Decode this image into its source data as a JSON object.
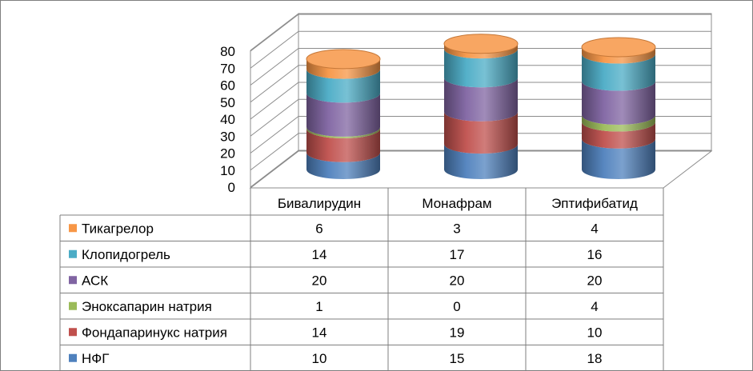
{
  "chart_data": {
    "type": "bar",
    "style": "stacked 3d cylinder with data table",
    "categories": [
      "Бивалирудин",
      "Монафрам",
      "Эптифибатид"
    ],
    "series": [
      {
        "name": "НФГ",
        "values": [
          10,
          15,
          18
        ],
        "color": "#4F81BD"
      },
      {
        "name": "Фондапаринукс натрия",
        "values": [
          14,
          19,
          10
        ],
        "color": "#C0504D"
      },
      {
        "name": "Эноксапарин натрия",
        "values": [
          1,
          0,
          4
        ],
        "color": "#9BBB59"
      },
      {
        "name": "АСК",
        "values": [
          20,
          20,
          20
        ],
        "color": "#8064A2"
      },
      {
        "name": "Клопидогрель",
        "values": [
          14,
          17,
          16
        ],
        "color": "#4BACC6"
      },
      {
        "name": "Тикагрелор",
        "values": [
          6,
          3,
          4
        ],
        "color": "#F79646"
      }
    ],
    "yticks": [
      "0",
      "10",
      "20",
      "30",
      "40",
      "50",
      "60",
      "70",
      "80"
    ],
    "ylim": [
      0,
      80
    ],
    "grid": true,
    "legend": "data table"
  }
}
